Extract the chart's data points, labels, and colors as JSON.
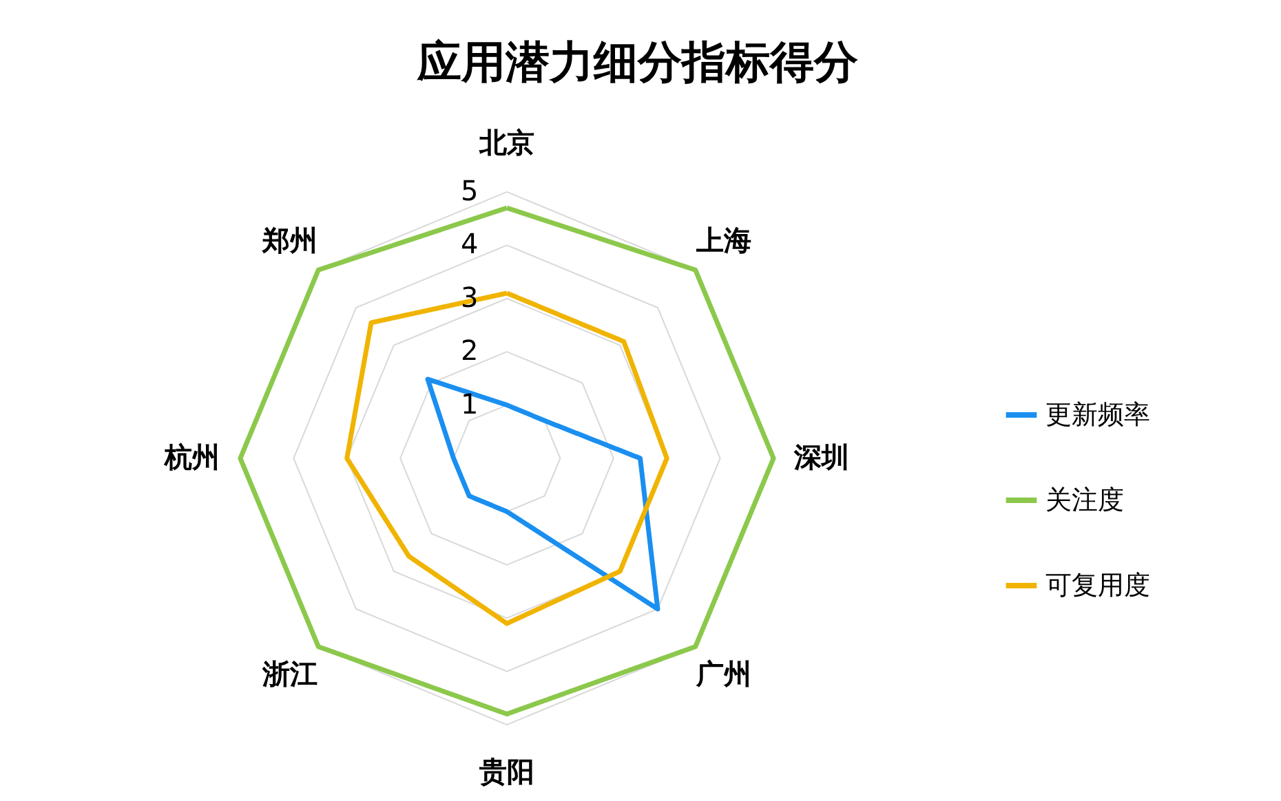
{
  "chart_data": {
    "type": "radar",
    "title": "应用潜力细分指标得分",
    "categories": [
      "北京",
      "上海",
      "深圳",
      "广州",
      "贵阳",
      "浙江",
      "杭州",
      "郑州"
    ],
    "series": [
      {
        "name": "更新频率",
        "color": "#1a8ff0",
        "values": [
          1.0,
          1.0,
          2.5,
          4.0,
          1.0,
          1.0,
          1.0,
          2.1
        ]
      },
      {
        "name": "关注度",
        "color": "#8cc84b",
        "values": [
          4.7,
          5.0,
          5.0,
          5.0,
          4.8,
          5.0,
          5.0,
          5.0
        ]
      },
      {
        "name": "可复用度",
        "color": "#f0b400",
        "values": [
          3.1,
          3.1,
          3.0,
          3.0,
          3.1,
          2.6,
          3.0,
          3.6
        ]
      }
    ],
    "ylim": [
      0,
      5
    ],
    "yticks": [
      1,
      2,
      3,
      4,
      5
    ],
    "grid": true,
    "legend": "right",
    "marker": "none"
  }
}
